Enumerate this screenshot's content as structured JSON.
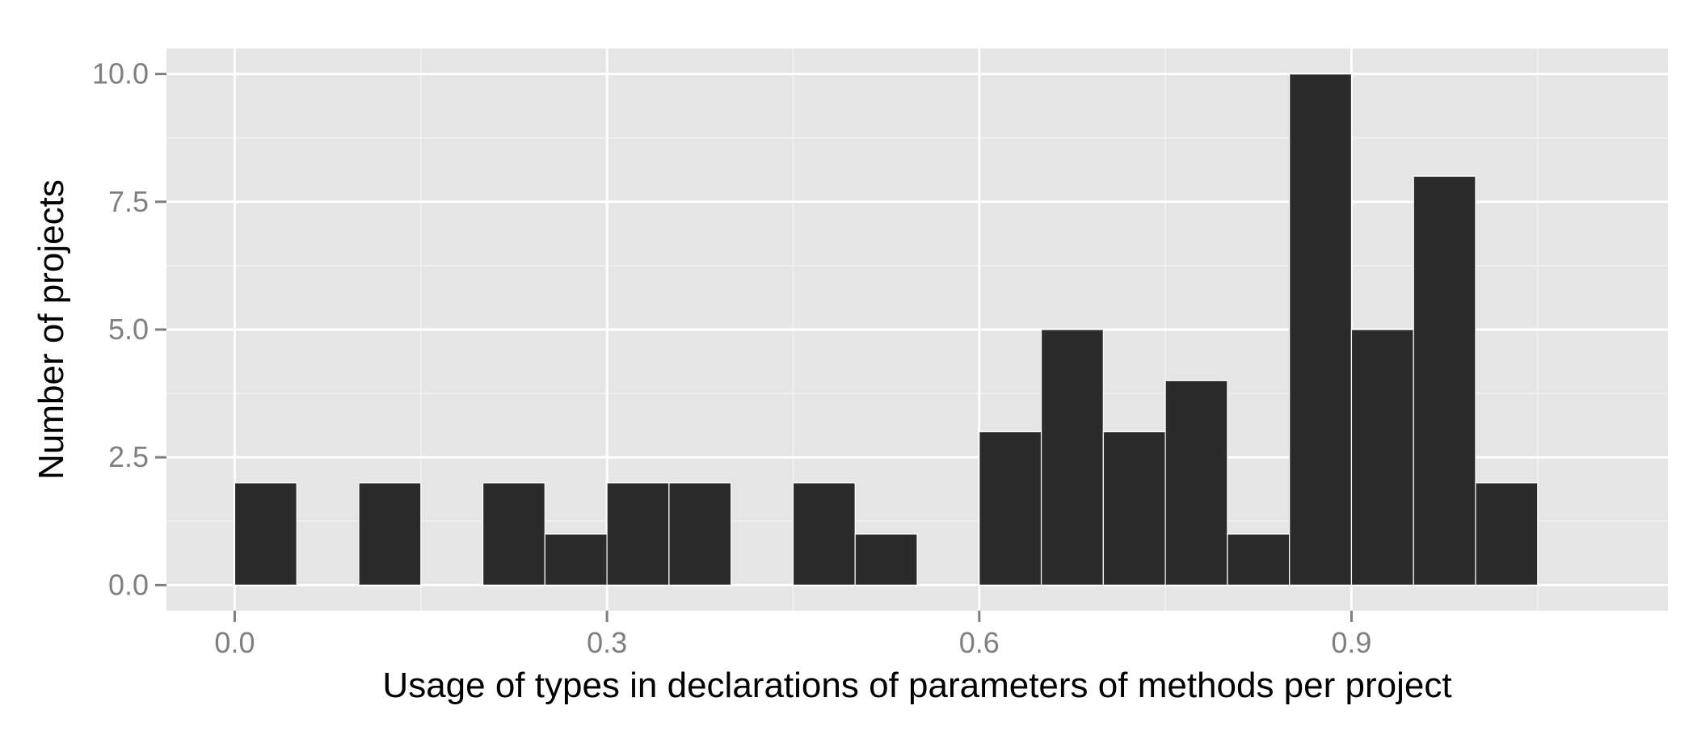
{
  "chart_data": {
    "type": "bar",
    "title": "",
    "xlabel": "Usage of types in declarations of parameters of methods per project",
    "ylabel": "Number of projects",
    "bins": [
      {
        "start": 0.0,
        "end": 0.05,
        "count": 2
      },
      {
        "start": 0.05,
        "end": 0.1,
        "count": 0
      },
      {
        "start": 0.1,
        "end": 0.15,
        "count": 2
      },
      {
        "start": 0.15,
        "end": 0.2,
        "count": 0
      },
      {
        "start": 0.2,
        "end": 0.25,
        "count": 2
      },
      {
        "start": 0.25,
        "end": 0.3,
        "count": 1
      },
      {
        "start": 0.3,
        "end": 0.35,
        "count": 2
      },
      {
        "start": 0.35,
        "end": 0.4,
        "count": 2
      },
      {
        "start": 0.4,
        "end": 0.45,
        "count": 0
      },
      {
        "start": 0.45,
        "end": 0.5,
        "count": 2
      },
      {
        "start": 0.5,
        "end": 0.55,
        "count": 1
      },
      {
        "start": 0.55,
        "end": 0.6,
        "count": 0
      },
      {
        "start": 0.6,
        "end": 0.65,
        "count": 3
      },
      {
        "start": 0.65,
        "end": 0.7,
        "count": 5
      },
      {
        "start": 0.7,
        "end": 0.75,
        "count": 3
      },
      {
        "start": 0.75,
        "end": 0.8,
        "count": 4
      },
      {
        "start": 0.8,
        "end": 0.85,
        "count": 1
      },
      {
        "start": 0.85,
        "end": 0.9,
        "count": 10
      },
      {
        "start": 0.9,
        "end": 0.95,
        "count": 5
      },
      {
        "start": 0.95,
        "end": 1.0,
        "count": 8
      },
      {
        "start": 1.0,
        "end": 1.05,
        "count": 2
      }
    ],
    "x_ticks": [
      {
        "value": 0.0,
        "label": "0.0"
      },
      {
        "value": 0.3,
        "label": "0.3"
      },
      {
        "value": 0.6,
        "label": "0.6"
      },
      {
        "value": 0.9,
        "label": "0.9"
      }
    ],
    "y_ticks": [
      {
        "value": 0.0,
        "label": "0.0"
      },
      {
        "value": 2.5,
        "label": "2.5"
      },
      {
        "value": 5.0,
        "label": "5.0"
      },
      {
        "value": 7.5,
        "label": "7.5"
      },
      {
        "value": 10.0,
        "label": "10.0"
      }
    ],
    "xlim": [
      -0.055,
      1.155
    ],
    "ylim": [
      -0.5,
      10.5
    ],
    "grid": true,
    "legend": "none"
  },
  "colors": {
    "panel_background": "#e5e5e5",
    "grid_major": "#ffffff",
    "grid_minor": "#f2f2f2",
    "bar_fill": "#2b2b2b",
    "bar_outline": "#ffffff",
    "tick_label": "#7f7f7f",
    "axis_title": "#000000",
    "tick_mark": "#7f7f7f"
  }
}
